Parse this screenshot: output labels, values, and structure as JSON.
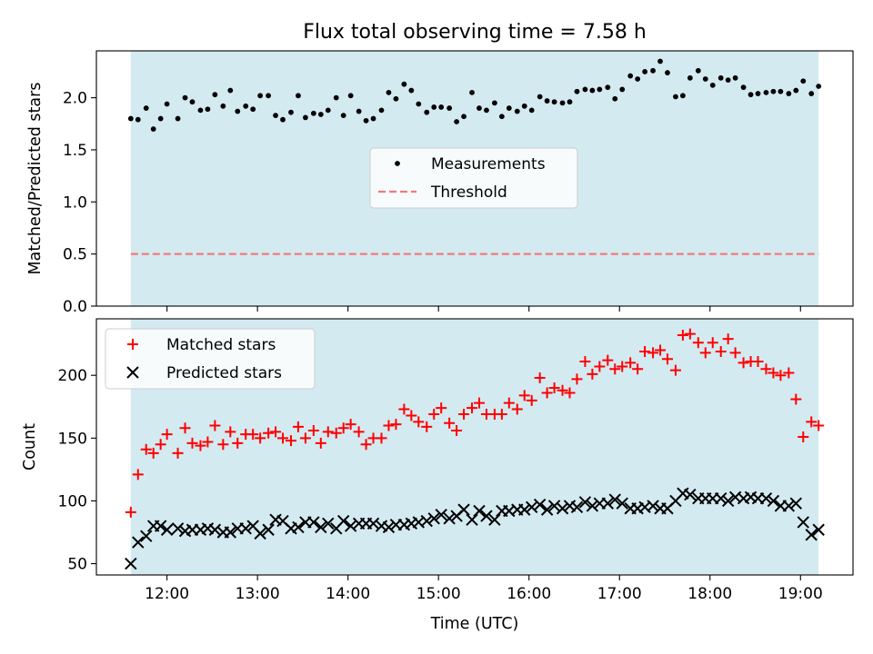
{
  "title": "Flux total observing time = 7.58 h",
  "colors": {
    "shade": "#d4eaf1",
    "measurement": "#000000",
    "threshold": "#f07a7a",
    "matched": "#ff0000",
    "predicted": "#000000"
  },
  "chart_data": [
    {
      "type": "scatter",
      "panel": "top",
      "ylabel": "Matched/Predicted stars",
      "xlim": [
        11.22,
        19.58
      ],
      "ylim": [
        0,
        2.45
      ],
      "shaded_interval": [
        11.6,
        19.2
      ],
      "yticks": [
        {
          "v": 0.0,
          "label": "0.0"
        },
        {
          "v": 0.5,
          "label": "0.5"
        },
        {
          "v": 1.0,
          "label": "1.0"
        },
        {
          "v": 1.5,
          "label": "1.5"
        },
        {
          "v": 2.0,
          "label": "2.0"
        }
      ],
      "legend": {
        "placement": "center",
        "entries": [
          {
            "label": "Measurements",
            "marker": "dot"
          },
          {
            "label": "Threshold",
            "marker": "dashed-line"
          }
        ]
      },
      "threshold": {
        "name": "Threshold",
        "y": 0.5,
        "x_range": [
          11.6,
          19.2
        ]
      },
      "series": [
        {
          "name": "Measurements",
          "x": [
            11.6,
            11.68,
            11.77,
            11.85,
            11.93,
            12.0,
            12.12,
            12.2,
            12.28,
            12.37,
            12.45,
            12.53,
            12.62,
            12.7,
            12.78,
            12.87,
            12.95,
            13.03,
            13.12,
            13.2,
            13.28,
            13.37,
            13.45,
            13.53,
            13.62,
            13.7,
            13.78,
            13.87,
            13.95,
            14.03,
            14.12,
            14.2,
            14.28,
            14.37,
            14.45,
            14.53,
            14.62,
            14.7,
            14.78,
            14.87,
            14.95,
            15.03,
            15.12,
            15.2,
            15.28,
            15.37,
            15.45,
            15.53,
            15.62,
            15.7,
            15.78,
            15.87,
            15.95,
            16.03,
            16.12,
            16.2,
            16.28,
            16.37,
            16.45,
            16.53,
            16.62,
            16.7,
            16.78,
            16.87,
            16.95,
            17.03,
            17.12,
            17.2,
            17.28,
            17.37,
            17.45,
            17.53,
            17.62,
            17.7,
            17.78,
            17.87,
            17.95,
            18.03,
            18.12,
            18.2,
            18.28,
            18.37,
            18.45,
            18.53,
            18.62,
            18.7,
            18.78,
            18.87,
            18.95,
            19.03,
            19.12,
            19.2
          ],
          "y": [
            1.8,
            1.79,
            1.9,
            1.7,
            1.8,
            1.94,
            1.8,
            2.0,
            1.96,
            1.88,
            1.89,
            2.03,
            1.92,
            2.07,
            1.87,
            1.92,
            1.89,
            2.02,
            2.02,
            1.83,
            1.79,
            1.86,
            2.02,
            1.81,
            1.85,
            1.84,
            1.88,
            2.0,
            1.83,
            2.02,
            1.87,
            1.78,
            1.8,
            1.88,
            2.05,
            1.99,
            2.13,
            2.07,
            1.94,
            1.86,
            1.91,
            1.91,
            1.9,
            1.77,
            1.82,
            2.05,
            1.9,
            1.88,
            1.95,
            1.82,
            1.9,
            1.87,
            1.92,
            1.88,
            2.01,
            1.97,
            1.96,
            1.95,
            1.96,
            2.06,
            2.08,
            2.07,
            2.08,
            2.1,
            1.99,
            2.08,
            2.21,
            2.18,
            2.25,
            2.26,
            2.35,
            2.24,
            2.01,
            2.02,
            2.19,
            2.26,
            2.18,
            2.12,
            2.19,
            2.17,
            2.19,
            2.1,
            2.03,
            2.04,
            2.05,
            2.06,
            2.06,
            2.04,
            2.07,
            2.16,
            2.04,
            2.11
          ]
        }
      ]
    },
    {
      "type": "scatter",
      "panel": "bottom",
      "ylabel": "Count",
      "xlabel": "Time (UTC)",
      "xlim": [
        11.22,
        19.58
      ],
      "ylim": [
        41,
        245
      ],
      "shaded_interval": [
        11.6,
        19.2
      ],
      "yticks": [
        {
          "v": 50,
          "label": "50"
        },
        {
          "v": 100,
          "label": "100"
        },
        {
          "v": 150,
          "label": "150"
        },
        {
          "v": 200,
          "label": "200"
        }
      ],
      "xticks": [
        {
          "v": 12,
          "label": "12:00"
        },
        {
          "v": 13,
          "label": "13:00"
        },
        {
          "v": 14,
          "label": "14:00"
        },
        {
          "v": 15,
          "label": "15:00"
        },
        {
          "v": 16,
          "label": "16:00"
        },
        {
          "v": 17,
          "label": "17:00"
        },
        {
          "v": 18,
          "label": "18:00"
        },
        {
          "v": 19,
          "label": "19:00"
        }
      ],
      "legend": {
        "placement": "upper-left",
        "entries": [
          {
            "label": "Matched stars",
            "marker": "plus"
          },
          {
            "label": "Predicted stars",
            "marker": "x"
          }
        ]
      },
      "series": [
        {
          "name": "Matched stars",
          "x": [
            11.6,
            11.68,
            11.77,
            11.85,
            11.93,
            12.0,
            12.12,
            12.2,
            12.28,
            12.37,
            12.45,
            12.53,
            12.62,
            12.7,
            12.78,
            12.87,
            12.95,
            13.03,
            13.12,
            13.2,
            13.28,
            13.37,
            13.45,
            13.53,
            13.62,
            13.7,
            13.78,
            13.87,
            13.95,
            14.03,
            14.12,
            14.2,
            14.28,
            14.37,
            14.45,
            14.53,
            14.62,
            14.7,
            14.78,
            14.87,
            14.95,
            15.03,
            15.12,
            15.2,
            15.28,
            15.37,
            15.45,
            15.53,
            15.62,
            15.7,
            15.78,
            15.87,
            15.95,
            16.03,
            16.12,
            16.2,
            16.28,
            16.37,
            16.45,
            16.53,
            16.62,
            16.7,
            16.78,
            16.87,
            16.95,
            17.03,
            17.12,
            17.2,
            17.28,
            17.37,
            17.45,
            17.53,
            17.62,
            17.7,
            17.78,
            17.87,
            17.95,
            18.03,
            18.12,
            18.2,
            18.28,
            18.37,
            18.45,
            18.53,
            18.62,
            18.7,
            18.78,
            18.87,
            18.95,
            19.03,
            19.12,
            19.2
          ],
          "y": [
            91,
            121,
            141,
            138,
            145,
            153,
            138,
            158,
            146,
            144,
            147,
            160,
            145,
            155,
            146,
            153,
            153,
            150,
            154,
            155,
            150,
            148,
            159,
            150,
            156,
            146,
            155,
            154,
            158,
            161,
            155,
            145,
            150,
            150,
            160,
            161,
            173,
            168,
            163,
            159,
            169,
            174,
            162,
            156,
            169,
            174,
            178,
            169,
            169,
            169,
            178,
            173,
            184,
            180,
            198,
            186,
            190,
            188,
            186,
            197,
            211,
            201,
            207,
            212,
            205,
            207,
            210,
            205,
            219,
            218,
            220,
            213,
            204,
            232,
            233,
            226,
            218,
            226,
            219,
            229,
            218,
            210,
            211,
            211,
            205,
            202,
            200,
            202,
            181,
            151,
            163,
            160
          ]
        },
        {
          "name": "Predicted stars",
          "x": [
            11.6,
            11.68,
            11.77,
            11.85,
            11.93,
            12.0,
            12.12,
            12.2,
            12.28,
            12.37,
            12.45,
            12.53,
            12.62,
            12.7,
            12.78,
            12.87,
            12.95,
            13.03,
            13.12,
            13.2,
            13.28,
            13.37,
            13.45,
            13.53,
            13.62,
            13.7,
            13.78,
            13.87,
            13.95,
            14.03,
            14.12,
            14.2,
            14.28,
            14.37,
            14.45,
            14.53,
            14.62,
            14.7,
            14.78,
            14.87,
            14.95,
            15.03,
            15.12,
            15.2,
            15.28,
            15.37,
            15.45,
            15.53,
            15.62,
            15.7,
            15.78,
            15.87,
            15.95,
            16.03,
            16.12,
            16.2,
            16.28,
            16.37,
            16.45,
            16.53,
            16.62,
            16.7,
            16.78,
            16.87,
            16.95,
            17.03,
            17.12,
            17.2,
            17.28,
            17.37,
            17.45,
            17.53,
            17.62,
            17.7,
            17.78,
            17.87,
            17.95,
            18.03,
            18.12,
            18.2,
            18.28,
            18.37,
            18.45,
            18.53,
            18.62,
            18.7,
            18.78,
            18.87,
            18.95,
            19.03,
            19.12,
            19.2
          ],
          "y": [
            50,
            67,
            72,
            80,
            80,
            77,
            78,
            76,
            77,
            77,
            78,
            77,
            75,
            75,
            78,
            78,
            80,
            74,
            77,
            85,
            84,
            78,
            79,
            83,
            83,
            79,
            82,
            78,
            84,
            80,
            82,
            82,
            82,
            80,
            79,
            81,
            81,
            82,
            83,
            84,
            86,
            89,
            86,
            88,
            93,
            85,
            92,
            88,
            85,
            92,
            92,
            93,
            93,
            95,
            97,
            93,
            96,
            94,
            96,
            95,
            99,
            96,
            98,
            98,
            101,
            98,
            94,
            94,
            95,
            96,
            94,
            94,
            100,
            106,
            105,
            102,
            102,
            102,
            102,
            100,
            103,
            102,
            103,
            102,
            102,
            100,
            96,
            96,
            98,
            83,
            73,
            77
          ]
        }
      ]
    }
  ]
}
